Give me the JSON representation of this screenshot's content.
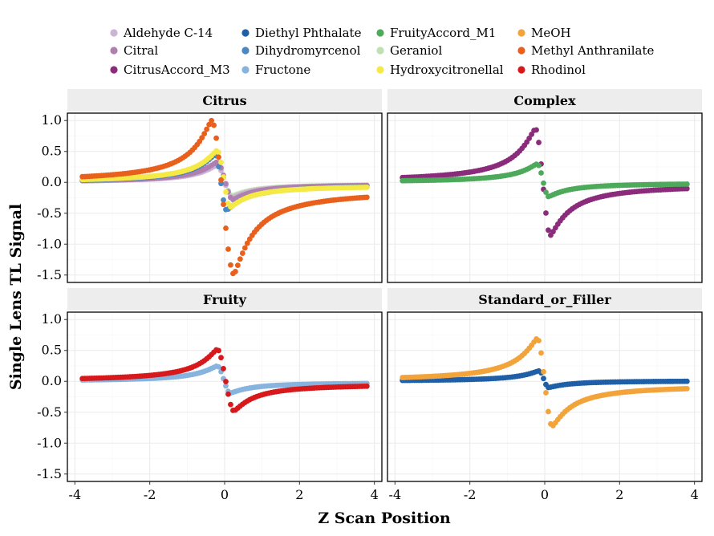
{
  "chart_data": {
    "type": "scatter",
    "layout": "facet-2x2",
    "xlabel": "Z Scan Position",
    "ylabel": "Single Lens TL Signal",
    "xlim": [
      -4.2,
      4.2
    ],
    "ylim": [
      -1.62,
      1.12
    ],
    "x_ticks": [
      -4,
      -2,
      0,
      2,
      4
    ],
    "x_tick_labels": [
      "-4",
      "-2",
      "0",
      "2",
      "4"
    ],
    "y_ticks": [
      1.0,
      0.5,
      0.0,
      -0.5,
      -1.0,
      -1.5
    ],
    "y_tick_labels": [
      "1.0",
      "0.5",
      "0.0",
      "-0.5",
      "-1.0",
      "-1.5"
    ],
    "x_start": -3.8,
    "x_end": 3.8,
    "legend": [
      {
        "name": "Aldehyde C-14",
        "color": "#cbb3d6"
      },
      {
        "name": "Citral",
        "color": "#b07fb0"
      },
      {
        "name": "CitrusAccord_M3",
        "color": "#8b2b7b"
      },
      {
        "name": "Diethyl Phthalate",
        "color": "#1f5fa8"
      },
      {
        "name": "Dihydromyrcenol",
        "color": "#4b87c0"
      },
      {
        "name": "Fructone",
        "color": "#86b4df"
      },
      {
        "name": "FruityAccord_M1",
        "color": "#4daa5a"
      },
      {
        "name": "Geraniol",
        "color": "#bfe0b0"
      },
      {
        "name": "Hydroxycitronellal",
        "color": "#f5ea45"
      },
      {
        "name": "MeOH",
        "color": "#f2a33a"
      },
      {
        "name": "Methyl Anthranilate",
        "color": "#e8601c"
      },
      {
        "name": "Rhodinol",
        "color": "#d7191c"
      }
    ],
    "panels": [
      {
        "title": "Citrus",
        "series": [
          {
            "name": "Geraniol",
            "peak": 0.3,
            "valley": -0.22,
            "peak_x": -0.2,
            "valley_x": 0.2,
            "tail": -0.03
          },
          {
            "name": "Aldehyde C-14",
            "peak": 0.28,
            "valley": -0.25,
            "peak_x": -0.2,
            "valley_x": 0.2,
            "tail": -0.03
          },
          {
            "name": "Citral",
            "peak": 0.33,
            "valley": -0.28,
            "peak_x": -0.2,
            "valley_x": 0.22,
            "tail": -0.03
          },
          {
            "name": "Dihydromyrcenol",
            "peak": 0.45,
            "valley": -0.45,
            "peak_x": -0.25,
            "valley_x": 0.05,
            "tail": -0.04
          },
          {
            "name": "Hydroxycitronellal",
            "peak": 0.52,
            "valley": -0.4,
            "peak_x": -0.2,
            "valley_x": 0.15,
            "tail": -0.05
          },
          {
            "name": "Methyl Anthranilate",
            "peak": 1.0,
            "valley": -1.49,
            "peak_x": -0.35,
            "valley_x": 0.25,
            "tail": -0.12
          }
        ]
      },
      {
        "title": "Complex",
        "series": [
          {
            "name": "CitrusAccord_M3",
            "peak": 0.87,
            "valley": -0.86,
            "peak_x": -0.25,
            "valley_x": 0.15,
            "tail": -0.03
          },
          {
            "name": "FruityAccord_M1",
            "peak": 0.3,
            "valley": -0.23,
            "peak_x": -0.2,
            "valley_x": 0.1,
            "tail": -0.01
          }
        ]
      },
      {
        "title": "Fruity",
        "series": [
          {
            "name": "Fructone",
            "peak": 0.25,
            "valley": -0.19,
            "peak_x": -0.2,
            "valley_x": 0.15,
            "tail": -0.02
          },
          {
            "name": "Rhodinol",
            "peak": 0.52,
            "valley": -0.48,
            "peak_x": -0.2,
            "valley_x": 0.25,
            "tail": -0.04
          }
        ]
      },
      {
        "title": "Standard_or_Filler",
        "series": [
          {
            "name": "Diethyl Phthalate",
            "peak": 0.17,
            "valley": -0.1,
            "peak_x": -0.15,
            "valley_x": 0.1,
            "tail": 0.01
          },
          {
            "name": "MeOH",
            "peak": 0.7,
            "valley": -0.73,
            "peak_x": -0.2,
            "valley_x": 0.2,
            "tail": -0.06
          }
        ]
      }
    ]
  }
}
